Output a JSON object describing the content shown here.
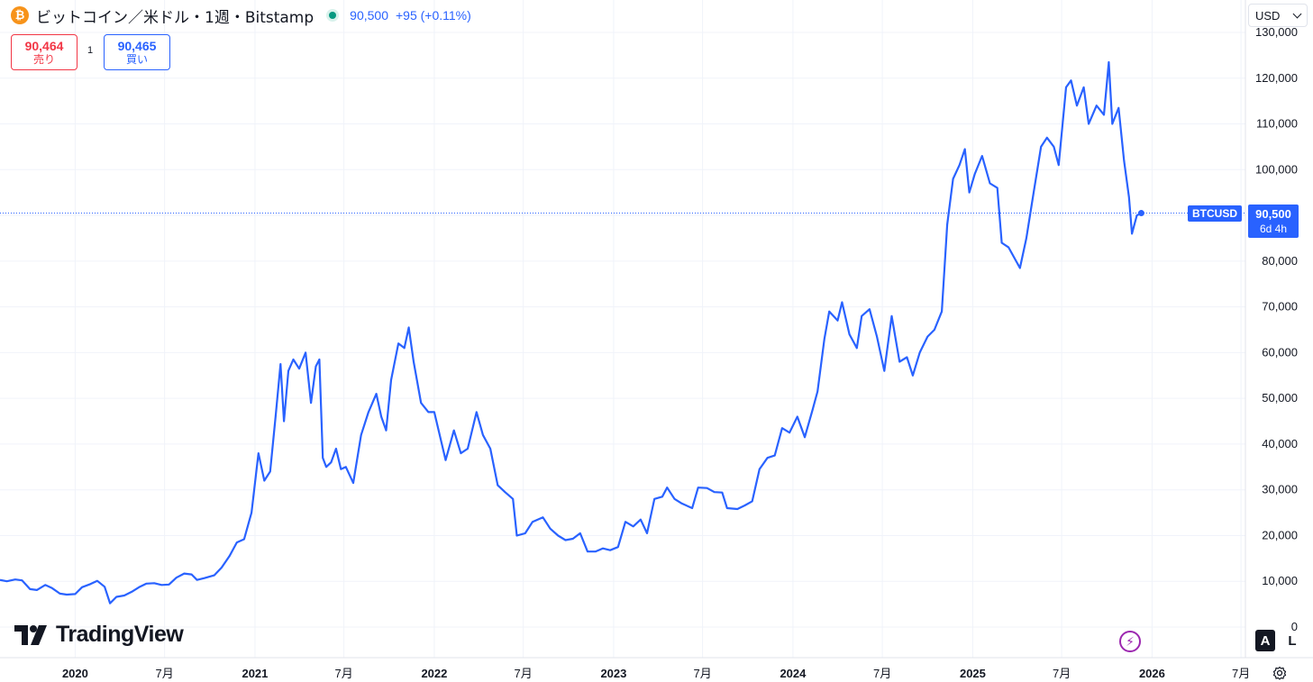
{
  "header": {
    "icon": "bitcoin-icon",
    "title": "ビットコイン／米ドル・1週・Bitstamp",
    "last_price": "90,500",
    "change": "+95 (+0.11%)"
  },
  "trade": {
    "sell_price": "90,464",
    "sell_label": "売り",
    "spread": "1",
    "buy_price": "90,465",
    "buy_label": "買い"
  },
  "currency": {
    "selected": "USD"
  },
  "price_tag": {
    "symbol": "BTCUSD",
    "price": "90,500",
    "countdown": "6d 4h"
  },
  "logo_text": "TradingView",
  "controls": {
    "auto": "A",
    "log": "L"
  },
  "colors": {
    "line": "#2962ff",
    "sell": "#f23645",
    "buy": "#2962ff",
    "live": "#089981"
  },
  "chart_data": {
    "type": "line",
    "title": "ビットコイン／米ドル・1週・Bitstamp",
    "ylim": [
      0,
      130000
    ],
    "y_ticks": [
      "0",
      "10,000",
      "20,000",
      "30,000",
      "40,000",
      "50,000",
      "60,000",
      "70,000",
      "80,000",
      "90,000",
      "100,000",
      "110,000",
      "120,000",
      "130,000"
    ],
    "y_tick_values": [
      0,
      10000,
      20000,
      30000,
      40000,
      50000,
      60000,
      70000,
      80000,
      90000,
      100000,
      110000,
      120000,
      130000
    ],
    "x_ticks": [
      {
        "label": "2020",
        "date": "2020-01-01",
        "year": true
      },
      {
        "label": "7月",
        "date": "2020-07-01",
        "year": false
      },
      {
        "label": "2021",
        "date": "2021-01-01",
        "year": true
      },
      {
        "label": "7月",
        "date": "2021-07-01",
        "year": false
      },
      {
        "label": "2022",
        "date": "2022-01-01",
        "year": true
      },
      {
        "label": "7月",
        "date": "2022-07-01",
        "year": false
      },
      {
        "label": "2023",
        "date": "2023-01-01",
        "year": true
      },
      {
        "label": "7月",
        "date": "2023-07-01",
        "year": false
      },
      {
        "label": "2024",
        "date": "2024-01-01",
        "year": true
      },
      {
        "label": "7月",
        "date": "2024-07-01",
        "year": false
      },
      {
        "label": "2025",
        "date": "2025-01-01",
        "year": true
      },
      {
        "label": "7月",
        "date": "2025-07-01",
        "year": false
      },
      {
        "label": "2026",
        "date": "2026-01-01",
        "year": true
      },
      {
        "label": "7月",
        "date": "2026-07-01",
        "year": false
      }
    ],
    "x_range": [
      "2019-08-01",
      "2026-07-10"
    ],
    "grid": true,
    "current_price": 90500,
    "series": [
      {
        "points": [
          [
            "2019-08-01",
            10300
          ],
          [
            "2019-08-15",
            10000
          ],
          [
            "2019-09-01",
            10400
          ],
          [
            "2019-09-15",
            10200
          ],
          [
            "2019-10-01",
            8300
          ],
          [
            "2019-10-15",
            8100
          ],
          [
            "2019-11-01",
            9200
          ],
          [
            "2019-11-15",
            8500
          ],
          [
            "2019-12-01",
            7300
          ],
          [
            "2019-12-15",
            7100
          ],
          [
            "2020-01-01",
            7200
          ],
          [
            "2020-01-15",
            8700
          ],
          [
            "2020-02-01",
            9400
          ],
          [
            "2020-02-15",
            10100
          ],
          [
            "2020-03-01",
            8800
          ],
          [
            "2020-03-12",
            5200
          ],
          [
            "2020-03-25",
            6600
          ],
          [
            "2020-04-10",
            6900
          ],
          [
            "2020-04-25",
            7700
          ],
          [
            "2020-05-10",
            8700
          ],
          [
            "2020-05-25",
            9500
          ],
          [
            "2020-06-10",
            9600
          ],
          [
            "2020-06-25",
            9200
          ],
          [
            "2020-07-10",
            9300
          ],
          [
            "2020-07-25",
            10800
          ],
          [
            "2020-08-10",
            11700
          ],
          [
            "2020-08-25",
            11500
          ],
          [
            "2020-09-05",
            10300
          ],
          [
            "2020-09-20",
            10700
          ],
          [
            "2020-10-10",
            11300
          ],
          [
            "2020-10-25",
            13000
          ],
          [
            "2020-11-10",
            15500
          ],
          [
            "2020-11-25",
            18500
          ],
          [
            "2020-12-10",
            19200
          ],
          [
            "2020-12-25",
            25000
          ],
          [
            "2021-01-08",
            38000
          ],
          [
            "2021-01-20",
            32000
          ],
          [
            "2021-02-01",
            34000
          ],
          [
            "2021-02-12",
            46000
          ],
          [
            "2021-02-22",
            57500
          ],
          [
            "2021-03-01",
            45000
          ],
          [
            "2021-03-10",
            56000
          ],
          [
            "2021-03-20",
            58500
          ],
          [
            "2021-04-01",
            56500
          ],
          [
            "2021-04-14",
            60000
          ],
          [
            "2021-04-25",
            49000
          ],
          [
            "2021-05-05",
            57000
          ],
          [
            "2021-05-12",
            58500
          ],
          [
            "2021-05-19",
            37000
          ],
          [
            "2021-05-26",
            35000
          ],
          [
            "2021-06-05",
            36000
          ],
          [
            "2021-06-15",
            39000
          ],
          [
            "2021-06-25",
            34500
          ],
          [
            "2021-07-05",
            35000
          ],
          [
            "2021-07-20",
            31500
          ],
          [
            "2021-08-05",
            42000
          ],
          [
            "2021-08-20",
            47000
          ],
          [
            "2021-09-05",
            51000
          ],
          [
            "2021-09-15",
            46000
          ],
          [
            "2021-09-25",
            43000
          ],
          [
            "2021-10-05",
            54000
          ],
          [
            "2021-10-20",
            62000
          ],
          [
            "2021-11-01",
            61000
          ],
          [
            "2021-11-10",
            65500
          ],
          [
            "2021-11-20",
            58000
          ],
          [
            "2021-12-05",
            49000
          ],
          [
            "2021-12-20",
            47000
          ],
          [
            "2022-01-01",
            47000
          ],
          [
            "2022-01-12",
            42000
          ],
          [
            "2022-01-24",
            36500
          ],
          [
            "2022-02-10",
            43000
          ],
          [
            "2022-02-24",
            38000
          ],
          [
            "2022-03-10",
            39000
          ],
          [
            "2022-03-28",
            47000
          ],
          [
            "2022-04-10",
            42000
          ],
          [
            "2022-04-25",
            39000
          ],
          [
            "2022-05-10",
            31000
          ],
          [
            "2022-05-25",
            29500
          ],
          [
            "2022-06-10",
            28000
          ],
          [
            "2022-06-18",
            20000
          ],
          [
            "2022-07-05",
            20500
          ],
          [
            "2022-07-20",
            23000
          ],
          [
            "2022-08-10",
            24000
          ],
          [
            "2022-08-25",
            21500
          ],
          [
            "2022-09-10",
            20000
          ],
          [
            "2022-09-25",
            19000
          ],
          [
            "2022-10-10",
            19300
          ],
          [
            "2022-10-25",
            20500
          ],
          [
            "2022-11-09",
            16500
          ],
          [
            "2022-11-25",
            16500
          ],
          [
            "2022-12-10",
            17200
          ],
          [
            "2022-12-25",
            16800
          ],
          [
            "2023-01-10",
            17500
          ],
          [
            "2023-01-25",
            23000
          ],
          [
            "2023-02-10",
            22000
          ],
          [
            "2023-02-25",
            23500
          ],
          [
            "2023-03-10",
            20500
          ],
          [
            "2023-03-25",
            28000
          ],
          [
            "2023-04-10",
            28500
          ],
          [
            "2023-04-20",
            30500
          ],
          [
            "2023-05-05",
            28000
          ],
          [
            "2023-05-20",
            27000
          ],
          [
            "2023-06-10",
            26000
          ],
          [
            "2023-06-22",
            30500
          ],
          [
            "2023-07-10",
            30400
          ],
          [
            "2023-07-25",
            29500
          ],
          [
            "2023-08-10",
            29400
          ],
          [
            "2023-08-20",
            26000
          ],
          [
            "2023-09-10",
            25800
          ],
          [
            "2023-09-25",
            26600
          ],
          [
            "2023-10-10",
            27500
          ],
          [
            "2023-10-25",
            34500
          ],
          [
            "2023-11-10",
            37000
          ],
          [
            "2023-11-25",
            37500
          ],
          [
            "2023-12-10",
            43500
          ],
          [
            "2023-12-25",
            42500
          ],
          [
            "2024-01-10",
            46000
          ],
          [
            "2024-01-25",
            41500
          ],
          [
            "2024-02-10",
            47500
          ],
          [
            "2024-02-20",
            51500
          ],
          [
            "2024-03-05",
            63000
          ],
          [
            "2024-03-15",
            69000
          ],
          [
            "2024-04-01",
            67000
          ],
          [
            "2024-04-10",
            71000
          ],
          [
            "2024-04-25",
            64000
          ],
          [
            "2024-05-10",
            61000
          ],
          [
            "2024-05-20",
            68000
          ],
          [
            "2024-06-05",
            69500
          ],
          [
            "2024-06-20",
            63500
          ],
          [
            "2024-07-05",
            56000
          ],
          [
            "2024-07-20",
            68000
          ],
          [
            "2024-08-05",
            58000
          ],
          [
            "2024-08-20",
            59000
          ],
          [
            "2024-09-01",
            55000
          ],
          [
            "2024-09-15",
            60000
          ],
          [
            "2024-10-01",
            63500
          ],
          [
            "2024-10-15",
            65000
          ],
          [
            "2024-10-30",
            69000
          ],
          [
            "2024-11-10",
            88000
          ],
          [
            "2024-11-22",
            98000
          ],
          [
            "2024-12-05",
            101000
          ],
          [
            "2024-12-16",
            104500
          ],
          [
            "2024-12-25",
            95000
          ],
          [
            "2025-01-05",
            99000
          ],
          [
            "2025-01-20",
            103000
          ],
          [
            "2025-02-05",
            97000
          ],
          [
            "2025-02-20",
            96000
          ],
          [
            "2025-03-01",
            84000
          ],
          [
            "2025-03-15",
            83000
          ],
          [
            "2025-04-07",
            78500
          ],
          [
            "2025-04-20",
            85000
          ],
          [
            "2025-05-05",
            95000
          ],
          [
            "2025-05-20",
            105000
          ],
          [
            "2025-06-01",
            107000
          ],
          [
            "2025-06-15",
            105000
          ],
          [
            "2025-06-25",
            101000
          ],
          [
            "2025-07-10",
            118000
          ],
          [
            "2025-07-20",
            119500
          ],
          [
            "2025-08-01",
            114000
          ],
          [
            "2025-08-15",
            118000
          ],
          [
            "2025-08-25",
            110000
          ],
          [
            "2025-09-10",
            114000
          ],
          [
            "2025-09-25",
            112000
          ],
          [
            "2025-10-05",
            123500
          ],
          [
            "2025-10-12",
            110000
          ],
          [
            "2025-10-25",
            113500
          ],
          [
            "2025-11-05",
            102000
          ],
          [
            "2025-11-15",
            94000
          ],
          [
            "2025-11-21",
            86000
          ],
          [
            "2025-12-01",
            90000
          ],
          [
            "2025-12-10",
            90500
          ]
        ]
      }
    ]
  }
}
